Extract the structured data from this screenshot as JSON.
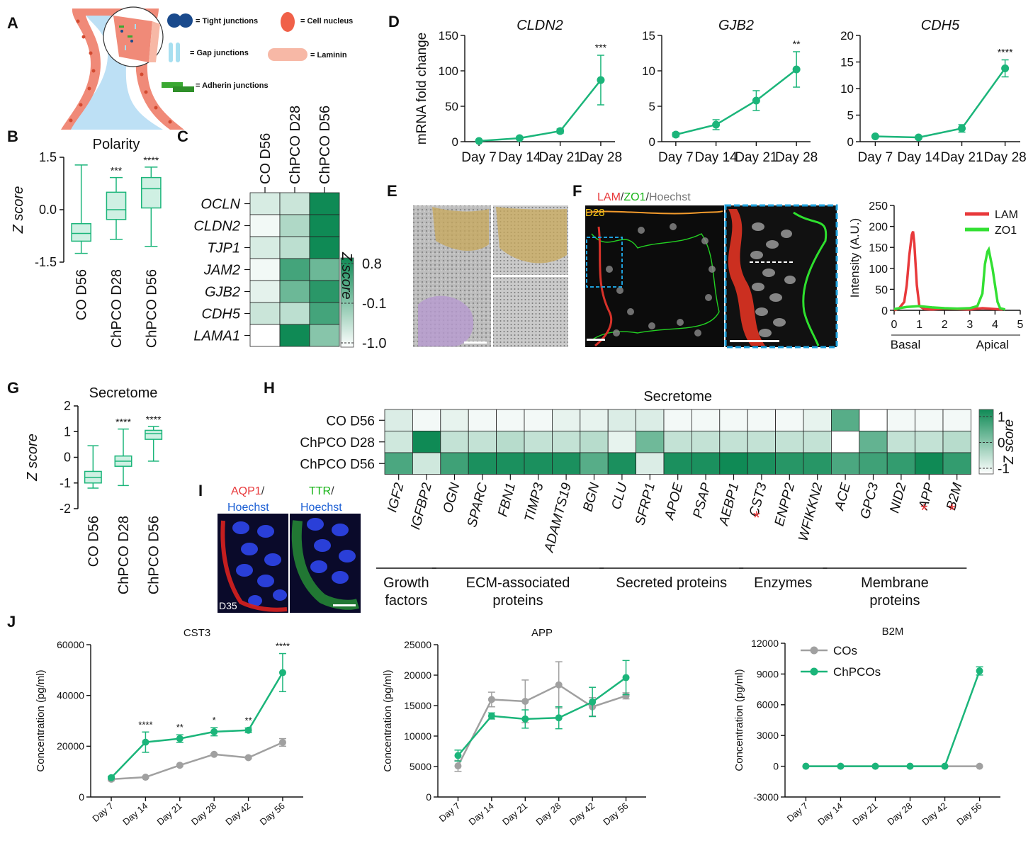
{
  "colors": {
    "green": "#1bb57a",
    "grey": "#a0a0a0",
    "box_fill": "#cff0e3",
    "heat_high": "#0f8a55",
    "heat_low": "#ffffff",
    "red": "#e8393b",
    "lime": "#33e033",
    "blue_dash": "#1ea0dc",
    "membrane": "#f08a78",
    "lumen": "#bde0f5",
    "tight": "#1a4a8c",
    "gap": "#a7dff0",
    "adherin": "#3aa832",
    "nucleus": "#f06048",
    "laminin": "#f7b8a6",
    "yellow_text": "#f5c518",
    "blue_text": "#1c5fd4",
    "green_text": "#18b418"
  },
  "panel_letters": {
    "A": "A",
    "B": "B",
    "C": "C",
    "D": "D",
    "E": "E",
    "F": "F",
    "G": "G",
    "H": "H",
    "I": "I",
    "J": "J"
  },
  "panelA": {
    "legend": [
      {
        "icon": "tight-junction-icon",
        "label": "= Tight junctions"
      },
      {
        "icon": "cell-nucleus-icon",
        "label": "= Cell nucleus"
      },
      {
        "icon": "gap-junction-icon",
        "label": "= Gap junctions"
      },
      {
        "icon": "laminin-icon",
        "label": "= Laminin"
      },
      {
        "icon": "adherin-junction-icon",
        "label": "= Adherin junctions"
      }
    ]
  },
  "panelE": {
    "caption": ""
  },
  "panelF": {
    "title_parts": [
      "LAM",
      "/",
      "ZO1",
      "/",
      "Hoechst"
    ],
    "day_label": "D28",
    "intensity_plot": {
      "ylabel": "Intensity (A.U.)",
      "yticks": [
        "0",
        "50",
        "100",
        "150",
        "200",
        "250"
      ],
      "xticks": [
        "0",
        "1",
        "2",
        "3",
        "4",
        "5"
      ],
      "x_left_label": "Basal",
      "x_right_label": "Apical",
      "legend": [
        "LAM",
        "ZO1"
      ]
    }
  },
  "panelI": {
    "left_parts": [
      "AQP1",
      "/",
      "Hoechst"
    ],
    "right_parts": [
      "TTR",
      "/",
      "Hoechst"
    ],
    "day_label": "D35"
  },
  "panelH": {
    "groups": [
      {
        "label1": "Growth",
        "label2": "factors"
      },
      {
        "label1": "ECM-associated",
        "label2": "proteins"
      },
      {
        "label1": "Secreted proteins",
        "label2": ""
      },
      {
        "label1": "Enzymes",
        "label2": ""
      },
      {
        "label1": "Membrane",
        "label2": "proteins"
      }
    ],
    "star": "*"
  },
  "chart_data": [
    {
      "id": "B",
      "type": "box",
      "title": "Polarity",
      "ylabel": "Z score",
      "ylim": [
        -1.5,
        1.5
      ],
      "yticks": [
        "1.5",
        "0.0",
        "-1.5"
      ],
      "categories": [
        "CO D56",
        "ChPCO D28",
        "ChPCO D56"
      ],
      "boxes": [
        {
          "min": -1.25,
          "q1": -0.9,
          "median": -0.68,
          "q3": -0.4,
          "max": 1.28,
          "sig": ""
        },
        {
          "min": -0.85,
          "q1": -0.28,
          "median": 0.0,
          "q3": 0.5,
          "max": 0.92,
          "sig": "***"
        },
        {
          "min": -1.05,
          "q1": 0.05,
          "median": 0.6,
          "q3": 0.92,
          "max": 1.22,
          "sig": "****"
        }
      ]
    },
    {
      "id": "C",
      "type": "heatmap",
      "columns": [
        "CO D56",
        "ChPCO D28",
        "ChPCO D56"
      ],
      "rows": [
        "OCLN",
        "CLDN2",
        "TJP1",
        "JAM2",
        "GJB2",
        "CDH5",
        "LAMA1"
      ],
      "values": [
        [
          -0.7,
          -0.6,
          0.8
        ],
        [
          -0.9,
          -0.4,
          0.8
        ],
        [
          -0.7,
          -0.5,
          0.9
        ],
        [
          -0.9,
          0.4,
          0.1
        ],
        [
          -0.8,
          0.1,
          0.6
        ],
        [
          -0.6,
          -0.5,
          0.4
        ],
        [
          -1.0,
          0.8,
          -0.1
        ]
      ],
      "colorbar": {
        "label": "Z score",
        "ticks": [
          "0.8",
          "-0.1",
          "-1.0"
        ],
        "range": [
          -1.0,
          0.8
        ]
      }
    },
    {
      "id": "D1",
      "type": "line",
      "title": "CLDN2",
      "ylabel": "mRNA fold change",
      "categories": [
        "Day 7",
        "Day 14",
        "Day 21",
        "Day 28"
      ],
      "ylim": [
        0,
        150
      ],
      "yticks": [
        "0",
        "50",
        "100",
        "150"
      ],
      "values": [
        1,
        5,
        15,
        87
      ],
      "errors": [
        1,
        2,
        3,
        35
      ],
      "sig": "***"
    },
    {
      "id": "D2",
      "type": "line",
      "title": "GJB2",
      "ylabel": "",
      "categories": [
        "Day 7",
        "Day 14",
        "Day 21",
        "Day 28"
      ],
      "ylim": [
        0,
        15
      ],
      "yticks": [
        "0",
        "5",
        "10",
        "15"
      ],
      "values": [
        1,
        2.4,
        5.8,
        10.2
      ],
      "errors": [
        0.3,
        0.7,
        1.4,
        2.5
      ],
      "sig": "**"
    },
    {
      "id": "D3",
      "type": "line",
      "title": "CDH5",
      "ylabel": "",
      "categories": [
        "Day 7",
        "Day 14",
        "Day 21",
        "Day 28"
      ],
      "ylim": [
        0,
        20
      ],
      "yticks": [
        "0",
        "5",
        "10",
        "15",
        "20"
      ],
      "values": [
        1,
        0.8,
        2.5,
        13.8
      ],
      "errors": [
        0.2,
        0.2,
        0.7,
        1.6
      ],
      "sig": "****"
    },
    {
      "id": "F",
      "type": "line",
      "xlim": [
        0,
        5
      ],
      "ylim": [
        0,
        250
      ],
      "series": [
        {
          "name": "LAM",
          "x": [
            0,
            0.2,
            0.4,
            0.5,
            0.6,
            0.7,
            0.75,
            0.8,
            0.9,
            1.0,
            1.2,
            1.5,
            2.0,
            2.5,
            3.0,
            3.5,
            4.0,
            4.3
          ],
          "y": [
            0,
            5,
            20,
            60,
            130,
            180,
            188,
            160,
            60,
            10,
            3,
            2,
            4,
            3,
            2,
            5,
            3,
            2
          ]
        },
        {
          "name": "ZO1",
          "x": [
            0,
            0.5,
            1.0,
            1.5,
            2.0,
            2.5,
            3.0,
            3.3,
            3.5,
            3.6,
            3.7,
            3.75,
            3.8,
            3.9,
            4.0,
            4.1,
            4.2,
            4.4
          ],
          "y": [
            3,
            8,
            10,
            7,
            5,
            4,
            5,
            10,
            40,
            110,
            140,
            145,
            130,
            100,
            60,
            20,
            5,
            2
          ]
        }
      ]
    },
    {
      "id": "G",
      "type": "box",
      "title": "Secretome",
      "ylabel": "Z score",
      "ylim": [
        -2,
        2
      ],
      "yticks": [
        "2",
        "1",
        "0",
        "-1",
        "-2"
      ],
      "categories": [
        "CO D56",
        "ChPCO D28",
        "ChPCO D56"
      ],
      "boxes": [
        {
          "min": -1.2,
          "q1": -1.0,
          "median": -0.78,
          "q3": -0.55,
          "max": 0.45,
          "sig": ""
        },
        {
          "min": -1.1,
          "q1": -0.35,
          "median": -0.15,
          "q3": 0.05,
          "max": 1.1,
          "sig": "****"
        },
        {
          "min": -0.15,
          "q1": 0.7,
          "median": 0.92,
          "q3": 1.05,
          "max": 1.2,
          "sig": "****"
        }
      ]
    },
    {
      "id": "H",
      "type": "heatmap",
      "title": "Secretome",
      "rows": [
        "CO D56",
        "ChPCO D28",
        "ChPCO D56"
      ],
      "columns": [
        "IGF2",
        "IGFBP2",
        "OGN",
        "SPARC",
        "FBN1",
        "TIMP3",
        "ADAMTS19",
        "BGN",
        "CLU",
        "SFRP1",
        "APOE",
        "PSAP",
        "AEBP1",
        "CST3",
        "ENPP2",
        "WFIKKN2",
        "ACE",
        "GPC3",
        "NID2",
        "APP",
        "B2M"
      ],
      "starred": [
        "CST3",
        "APP",
        "B2M"
      ],
      "values": [
        [
          -0.7,
          -0.9,
          -0.8,
          -0.9,
          -0.9,
          -0.9,
          -0.8,
          -0.8,
          -0.7,
          -0.7,
          -0.9,
          -0.9,
          -0.9,
          -0.9,
          -0.9,
          -0.8,
          0.4,
          -1.0,
          -0.9,
          -0.9,
          -0.9
        ],
        [
          -0.6,
          1.0,
          -0.5,
          -0.5,
          -0.4,
          -0.5,
          -0.5,
          -0.4,
          -0.8,
          0.2,
          -0.5,
          -0.5,
          -0.5,
          -0.5,
          -0.5,
          -0.5,
          -1.0,
          0.3,
          -0.5,
          -0.5,
          -0.4
        ],
        [
          0.5,
          -0.6,
          0.6,
          0.9,
          0.9,
          0.9,
          0.9,
          0.4,
          0.9,
          -0.7,
          0.9,
          0.9,
          1.0,
          0.9,
          0.8,
          0.8,
          0.5,
          0.6,
          0.7,
          1.1,
          0.7
        ]
      ],
      "colorbar": {
        "label": "Z score",
        "ticks": [
          "1",
          "0",
          "-1"
        ],
        "range": [
          -1,
          1
        ]
      },
      "groups": [
        {
          "from": 0,
          "to": 1
        },
        {
          "from": 2,
          "to": 7
        },
        {
          "from": 8,
          "to": 12
        },
        {
          "from": 13,
          "to": 15
        },
        {
          "from": 16,
          "to": 20
        }
      ]
    },
    {
      "id": "J1",
      "type": "line",
      "title": "CST3",
      "ylabel": "Concentration (pg/ml)",
      "categories": [
        "Day 7",
        "Day 14",
        "Day 21",
        "Day 28",
        "Day 42",
        "Day 56"
      ],
      "ylim": [
        0,
        60000
      ],
      "yticks": [
        "0",
        "20000",
        "40000",
        "60000"
      ],
      "series": [
        {
          "name": "COs",
          "values": [
            7000,
            7800,
            12500,
            16800,
            15500,
            21500
          ],
          "errors": [
            600,
            300,
            300,
            300,
            300,
            1500
          ]
        },
        {
          "name": "ChPCOs",
          "values": [
            7600,
            21600,
            23000,
            25700,
            26300,
            49000
          ],
          "errors": [
            500,
            4000,
            1500,
            1600,
            900,
            7500
          ]
        }
      ],
      "sig": [
        "",
        "****",
        "**",
        "*",
        "**",
        "****"
      ]
    },
    {
      "id": "J2",
      "type": "line",
      "title": "APP",
      "ylabel": "Concentration (pg/ml)",
      "categories": [
        "Day 7",
        "Day 14",
        "Day 21",
        "Day 28",
        "Day 42",
        "Day 56"
      ],
      "ylim": [
        0,
        25000
      ],
      "yticks": [
        "0",
        "5000",
        "10000",
        "15000",
        "20000",
        "25000"
      ],
      "series": [
        {
          "name": "COs",
          "values": [
            5100,
            16000,
            15700,
            18400,
            14800,
            16600
          ],
          "errors": [
            900,
            1200,
            3500,
            3800,
            1500,
            500
          ]
        },
        {
          "name": "ChPCOs",
          "values": [
            6800,
            13300,
            12800,
            13000,
            15600,
            19600
          ],
          "errors": [
            900,
            500,
            1500,
            1800,
            2400,
            2800
          ]
        }
      ],
      "sig": [
        "",
        "",
        "",
        "",
        "",
        ""
      ]
    },
    {
      "id": "J3",
      "type": "line",
      "title": "B2M",
      "ylabel": "Concentration (pg/ml)",
      "categories": [
        "Day 7",
        "Day 14",
        "Day 21",
        "Day 28",
        "Day 42",
        "Day 56"
      ],
      "ylim": [
        -3000,
        12000
      ],
      "yticks": [
        "-3000",
        "0",
        "3000",
        "6000",
        "9000",
        "12000"
      ],
      "series": [
        {
          "name": "COs",
          "values": [
            0,
            0,
            0,
            0,
            0,
            0
          ],
          "errors": [
            0,
            0,
            0,
            0,
            0,
            0
          ]
        },
        {
          "name": "ChPCOs",
          "values": [
            0,
            0,
            0,
            0,
            0,
            9300
          ],
          "errors": [
            0,
            0,
            0,
            0,
            0,
            400
          ]
        }
      ],
      "legend": [
        "COs",
        "ChPCOs"
      ],
      "sig": [
        "",
        "",
        "",
        "",
        "",
        ""
      ]
    }
  ]
}
